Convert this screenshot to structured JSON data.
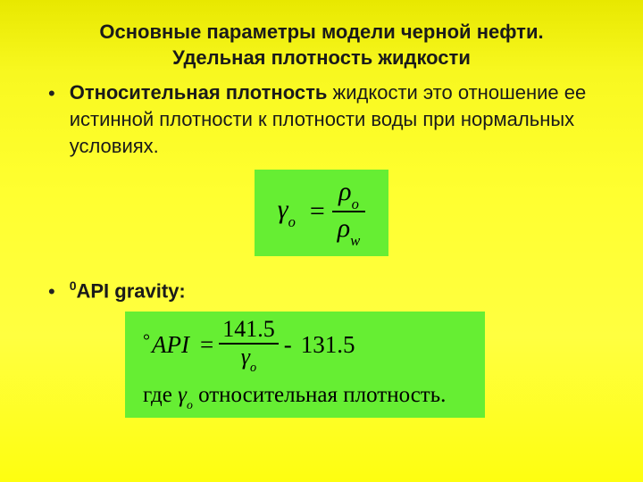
{
  "colors": {
    "formula_bg": "#66ee33",
    "text": "#1a1a1a",
    "gradient_top": "#e8e800",
    "gradient_bottom": "#fefe10"
  },
  "title_line1": "Основные параметры модели черной нефти.",
  "title_line2": "Удельная плотность жидкости",
  "bullet1": {
    "bold": "Относительная плотность",
    "rest": " жидкости это отношение ее истинной плотности к плотности воды при нормальных условиях."
  },
  "formula1": {
    "lhs_sym": "γ",
    "lhs_sub": "o",
    "num_sym": "ρ",
    "num_sub": "o",
    "den_sym": "ρ",
    "den_sub": "w"
  },
  "bullet2": {
    "sup": "0",
    "text": "API gravity:"
  },
  "formula2": {
    "deg": "°",
    "api": "API",
    "num": "141.5",
    "den_sym": "γ",
    "den_sub": "o",
    "const": "131.5",
    "line2_pre": "где ",
    "line2_sym": "γ",
    "line2_sub": "o",
    "line2_post": " относительная плотность."
  }
}
